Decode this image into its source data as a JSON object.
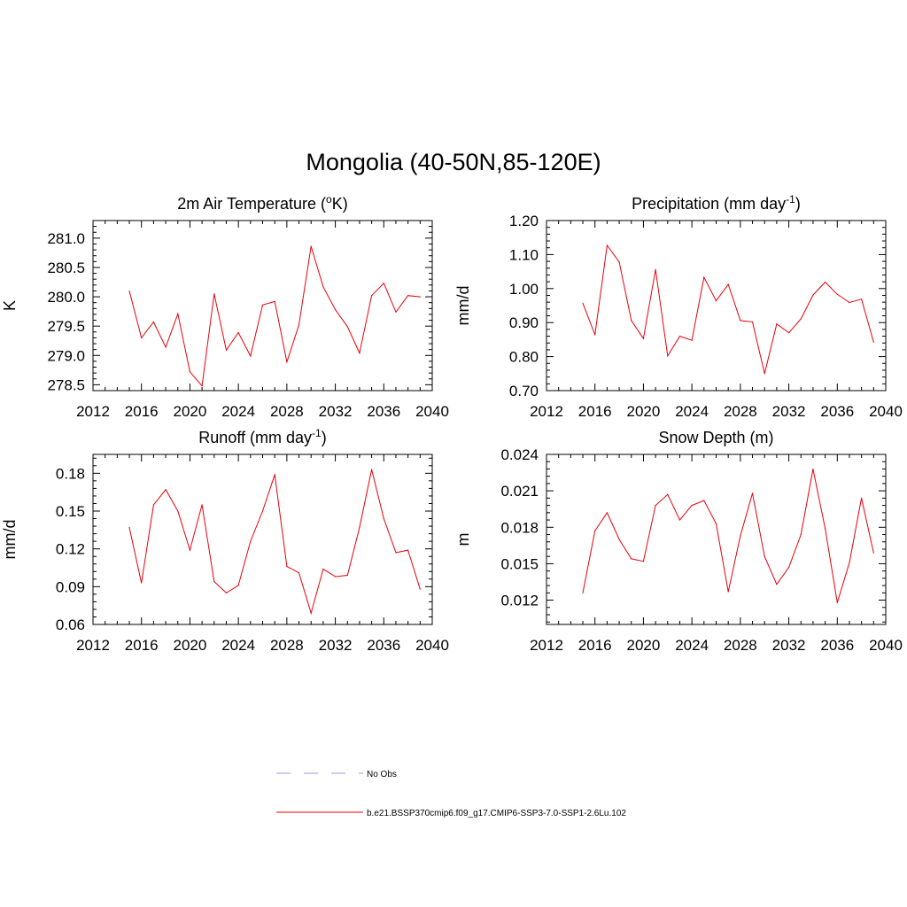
{
  "title": "Mongolia (40-50N,85-120E)",
  "colors": {
    "model_line": "#e8000b",
    "obs_line": "#9999dd",
    "axis": "#000000"
  },
  "legend": [
    {
      "label": "No Obs",
      "style": "dashed",
      "color": "#9999dd"
    },
    {
      "label": "b.e21.BSSP370cmip6.f09_g17.CMIP6-SSP3-7.0-SSP1-2.6Lu.102",
      "style": "solid",
      "color": "#e8000b"
    }
  ],
  "chart_data": [
    {
      "type": "line",
      "title_main": "2m Air Temperature (",
      "title_sup": "o",
      "title_tail": "K)",
      "ylabel": "K",
      "xlim": [
        2012,
        2040
      ],
      "ylim": [
        278.4,
        281.3
      ],
      "xticks": [
        2012,
        2016,
        2020,
        2024,
        2028,
        2032,
        2036,
        2040
      ],
      "yticks": [
        "278.5",
        "279.0",
        "279.5",
        "280.0",
        "280.5",
        "281.0"
      ],
      "x": [
        2015,
        2016,
        2017,
        2018,
        2019,
        2020,
        2021,
        2022,
        2023,
        2024,
        2025,
        2026,
        2027,
        2028,
        2029,
        2030,
        2031,
        2032,
        2033,
        2034,
        2035,
        2036,
        2037,
        2038,
        2039
      ],
      "values": [
        280.1,
        279.3,
        279.57,
        279.14,
        279.71,
        278.72,
        278.48,
        280.05,
        279.09,
        279.39,
        278.99,
        279.86,
        279.92,
        278.89,
        279.52,
        280.86,
        280.17,
        279.78,
        279.49,
        279.04,
        280.02,
        280.23,
        279.74,
        280.02,
        280.0
      ]
    },
    {
      "type": "line",
      "title_main": "Precipitation (mm day",
      "title_sup": "-1",
      "title_tail": ")",
      "ylabel": "mm/d",
      "xlim": [
        2012,
        2040
      ],
      "ylim": [
        0.7,
        1.2
      ],
      "xticks": [
        2012,
        2016,
        2020,
        2024,
        2028,
        2032,
        2036,
        2040
      ],
      "yticks": [
        "0.70",
        "0.80",
        "0.90",
        "1.00",
        "1.10",
        "1.20"
      ],
      "x": [
        2015,
        2016,
        2017,
        2018,
        2019,
        2020,
        2021,
        2022,
        2023,
        2024,
        2025,
        2026,
        2027,
        2028,
        2029,
        2030,
        2031,
        2032,
        2033,
        2034,
        2035,
        2036,
        2037,
        2038,
        2039
      ],
      "values": [
        0.957,
        0.864,
        1.127,
        1.078,
        0.906,
        0.853,
        1.056,
        0.802,
        0.86,
        0.848,
        1.033,
        0.964,
        1.012,
        0.906,
        0.902,
        0.75,
        0.896,
        0.87,
        0.911,
        0.981,
        1.019,
        0.983,
        0.959,
        0.969,
        0.843
      ]
    },
    {
      "type": "line",
      "title_main": "Runoff (mm day",
      "title_sup": "-1",
      "title_tail": ")",
      "ylabel": "mm/d",
      "xlim": [
        2012,
        2040
      ],
      "ylim": [
        0.06,
        0.195
      ],
      "xticks": [
        2012,
        2016,
        2020,
        2024,
        2028,
        2032,
        2036,
        2040
      ],
      "yticks": [
        "0.06",
        "0.09",
        "0.12",
        "0.15",
        "0.18"
      ],
      "x": [
        2015,
        2016,
        2017,
        2018,
        2019,
        2020,
        2021,
        2022,
        2023,
        2024,
        2025,
        2026,
        2027,
        2028,
        2029,
        2030,
        2031,
        2032,
        2033,
        2034,
        2035,
        2036,
        2037,
        2038,
        2039
      ],
      "values": [
        0.137,
        0.093,
        0.155,
        0.167,
        0.15,
        0.119,
        0.155,
        0.094,
        0.085,
        0.091,
        0.126,
        0.15,
        0.179,
        0.106,
        0.101,
        0.069,
        0.104,
        0.098,
        0.099,
        0.137,
        0.183,
        0.144,
        0.117,
        0.119,
        0.088
      ]
    },
    {
      "type": "line",
      "title_main": "Snow Depth (m)",
      "title_sup": "",
      "title_tail": "",
      "ylabel": "m",
      "xlim": [
        2012,
        2040
      ],
      "ylim": [
        0.01,
        0.024
      ],
      "xticks": [
        2012,
        2016,
        2020,
        2024,
        2028,
        2032,
        2036,
        2040
      ],
      "yticks": [
        "0.012",
        "0.015",
        "0.018",
        "0.021",
        "0.024"
      ],
      "x": [
        2015,
        2016,
        2017,
        2018,
        2019,
        2020,
        2021,
        2022,
        2023,
        2024,
        2025,
        2026,
        2027,
        2028,
        2029,
        2030,
        2031,
        2032,
        2033,
        2034,
        2035,
        2036,
        2037,
        2038,
        2039
      ],
      "values": [
        0.0126,
        0.0177,
        0.0192,
        0.017,
        0.0154,
        0.0152,
        0.0198,
        0.0207,
        0.0186,
        0.0198,
        0.0202,
        0.0183,
        0.0127,
        0.0173,
        0.0208,
        0.0156,
        0.0133,
        0.0147,
        0.0174,
        0.0228,
        0.0179,
        0.0118,
        0.0151,
        0.0204,
        0.0159
      ]
    }
  ]
}
